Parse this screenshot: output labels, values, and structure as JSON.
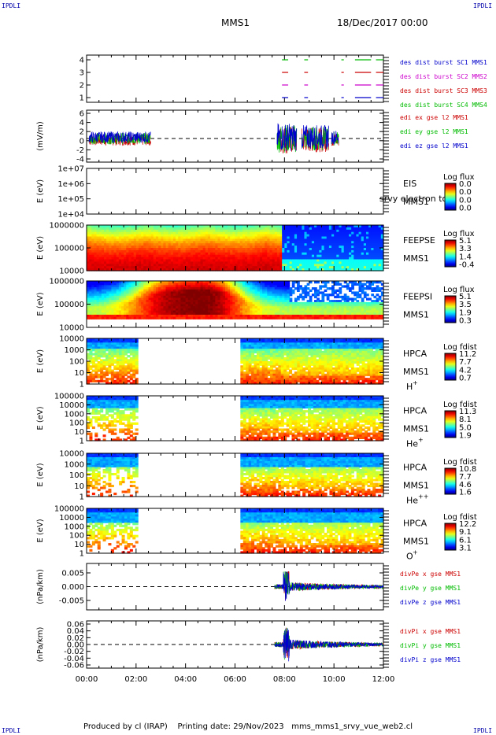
{
  "header": {
    "corner_label": "IPDLI",
    "spacecraft": "MMS1",
    "date": "18/Dec/2017 00:00"
  },
  "footer": {
    "produced": "Produced by cl (IRAP)",
    "printing": "Printing date: 29/Nov/2023",
    "script": "mms_mms1_srvy_vue_web2.cl"
  },
  "colors": {
    "sc1": "#0000cc",
    "sc2": "#cc00cc",
    "sc3": "#cc0000",
    "sc4": "#00bb00",
    "x": "#cc0000",
    "y": "#00bb00",
    "z": "#0000cc"
  },
  "chart_data": [
    {
      "type": "line",
      "id": "burst",
      "ylabel": "",
      "yticks": [
        "4",
        "3",
        "2",
        "1"
      ],
      "legend": [
        "des dist burst SC1 MMS1",
        "des dist burst SC2 MMS2",
        "des dist burst SC3 MMS3",
        "des dist burst SC4 MMS4"
      ],
      "series_levels": [
        1,
        2,
        3,
        4
      ],
      "intervals_hours": [
        [
          7.9,
          8.15
        ],
        [
          8.8,
          8.95
        ],
        [
          10.3,
          10.4
        ],
        [
          10.85,
          11.5
        ],
        [
          11.7,
          12.0
        ]
      ]
    },
    {
      "type": "line",
      "id": "edi",
      "ylabel": "(mV/m)",
      "yticks": [
        "6",
        "4",
        "2",
        "0",
        "-2",
        "-4"
      ],
      "ylim": [
        -5,
        6
      ],
      "legend": [
        "edi ex gse l2 MMS1",
        "edi ey gse l2 MMS1",
        "edi ez gse l2 MMS1"
      ]
    },
    {
      "type": "heatmap",
      "id": "eis",
      "ylabel": "E (eV)",
      "yticks": [
        "1e+07",
        "1e+06",
        "1e+05",
        "1e+04"
      ],
      "side_labels": [
        "EIS",
        "MMS1"
      ],
      "overlap_text": "srvy electron to",
      "cbar_title": "Log flux",
      "cbar_ticks": [
        "0.0",
        "0.0",
        "0.0",
        "0.0"
      ]
    },
    {
      "type": "heatmap",
      "id": "feepse",
      "ylabel": "E (eV)",
      "yticks": [
        "1000000",
        "100000",
        "10000"
      ],
      "side_labels": [
        "FEEPSE",
        "MMS1"
      ],
      "cbar_title": "Log flux",
      "cbar_ticks": [
        "5.1",
        "3.3",
        "1.4",
        "-0.4"
      ]
    },
    {
      "type": "heatmap",
      "id": "feepsi",
      "ylabel": "E (eV)",
      "yticks": [
        "1000000",
        "100000",
        "10000"
      ],
      "side_labels": [
        "FEEPSI",
        "MMS1"
      ],
      "cbar_title": "Log flux",
      "cbar_ticks": [
        "5.1",
        "3.5",
        "1.9",
        "0.3"
      ]
    },
    {
      "type": "heatmap",
      "id": "hpca_h",
      "ylabel": "E (eV)",
      "yticks": [
        "10000",
        "1000",
        "100",
        "10",
        "1"
      ],
      "side_labels": [
        "HPCA",
        "MMS1"
      ],
      "species": "H",
      "charge": "+",
      "cbar_title": "Log fdist",
      "cbar_ticks": [
        "11.2",
        "7.7",
        "4.2",
        "0.7"
      ]
    },
    {
      "type": "heatmap",
      "id": "hpca_he",
      "ylabel": "E (eV)",
      "yticks": [
        "100000",
        "10000",
        "1000",
        "100",
        "10",
        "1"
      ],
      "side_labels": [
        "HPCA",
        "MMS1"
      ],
      "species": "He",
      "charge": "+",
      "cbar_title": "Log fdist",
      "cbar_ticks": [
        "11.3",
        "8.1",
        "5.0",
        "1.9"
      ]
    },
    {
      "type": "heatmap",
      "id": "hpca_hepp",
      "ylabel": "E (eV)",
      "yticks": [
        "10000",
        "1000",
        "100",
        "10",
        "1"
      ],
      "side_labels": [
        "HPCA",
        "MMS1"
      ],
      "species": "He",
      "charge": "++",
      "cbar_title": "Log fdist",
      "cbar_ticks": [
        "10.8",
        "7.7",
        "4.6",
        "1.6"
      ]
    },
    {
      "type": "heatmap",
      "id": "hpca_o",
      "ylabel": "E (eV)",
      "yticks": [
        "100000",
        "10000",
        "1000",
        "100",
        "10",
        "1"
      ],
      "side_labels": [
        "HPCA",
        "MMS1"
      ],
      "species": "O",
      "charge": "+",
      "cbar_title": "Log fdist",
      "cbar_ticks": [
        "12.2",
        "9.1",
        "6.1",
        "3.1"
      ]
    },
    {
      "type": "line",
      "id": "divpe",
      "ylabel": "(nPa/km)",
      "yticks": [
        "0.005",
        "0.000",
        "-0.005"
      ],
      "ylim": [
        -0.009,
        0.009
      ],
      "legend": [
        "divPe x gse MMS1",
        "divPe y gse MMS1",
        "divPe z gse MMS1"
      ]
    },
    {
      "type": "line",
      "id": "divpi",
      "ylabel": "(nPa/km)",
      "yticks": [
        "0.06",
        "0.04",
        "0.02",
        "0.00",
        "-0.02",
        "-0.04",
        "-0.06"
      ],
      "ylim": [
        -0.07,
        0.07
      ],
      "legend": [
        "divPi x gse MMS1",
        "divPi y gse MMS1",
        "divPi z gse MMS1"
      ]
    }
  ],
  "xaxis": {
    "range_hours": [
      0,
      12
    ],
    "ticks": [
      "00:00",
      "02:00",
      "04:00",
      "06:00",
      "08:00",
      "10:00",
      "12:00"
    ]
  }
}
